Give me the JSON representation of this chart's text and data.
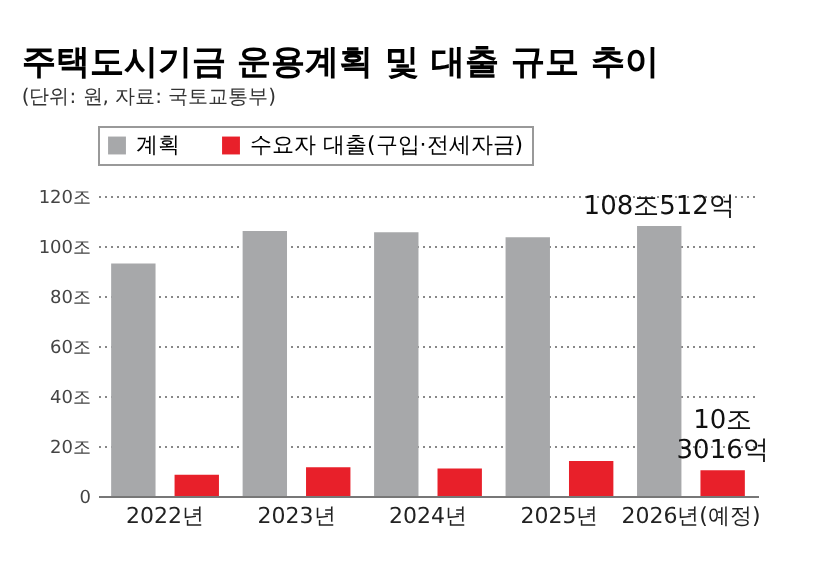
{
  "chart_data": {
    "type": "bar",
    "title": "주택도시기금 운용계획 및 대출 규모 추이",
    "subtitle": "(단위: 원, 자료: 국토교통부)",
    "categories": [
      "2022년",
      "2023년",
      "2024년",
      "2025년",
      "2026년(예정)"
    ],
    "series": [
      {
        "name": "계획",
        "color": "#a7a8aa",
        "values": [
          93,
          106,
          105.5,
          103.5,
          108.05
        ],
        "value_labels": [
          null,
          null,
          null,
          null,
          "108조512억"
        ]
      },
      {
        "name": "수요자 대출(구입·전세자금)",
        "color": "#e8202a",
        "values": [
          8.5,
          11.5,
          11,
          14,
          10.3
        ],
        "value_labels": [
          null,
          null,
          null,
          null,
          "10조\n3016억"
        ]
      }
    ],
    "ylim": [
      0,
      120
    ],
    "yticks": [
      {
        "value": 0,
        "label": "0"
      },
      {
        "value": 20,
        "label": "20조"
      },
      {
        "value": 40,
        "label": "40조"
      },
      {
        "value": 60,
        "label": "60조"
      },
      {
        "value": 80,
        "label": "80조"
      },
      {
        "value": 100,
        "label": "100조"
      },
      {
        "value": 120,
        "label": "120조"
      }
    ],
    "grid": "y",
    "legend": "top left"
  }
}
